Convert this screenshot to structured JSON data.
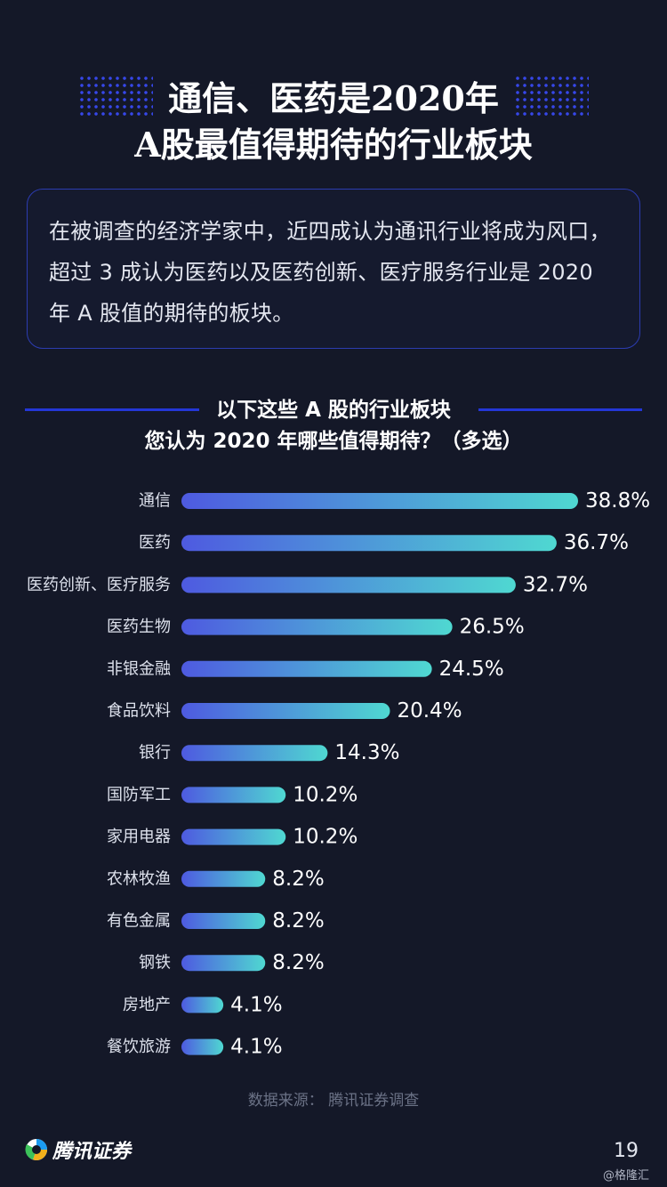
{
  "title": {
    "line1": "通信、医药是2020年",
    "line2": "A股最值得期待的行业板块"
  },
  "summary": "在被调查的经济学家中，近四成认为通讯行业将成为风口，超过 3 成认为医药以及医药创新、医疗服务行业是 2020 年 A 股值的期待的板块。",
  "question": {
    "line1": "以下这些 A 股的行业板块",
    "line2": "您认为 2020 年哪些值得期待？（多选）"
  },
  "chart_data": {
    "type": "bar",
    "orientation": "horizontal",
    "categories": [
      "通信",
      "医药",
      "医药创新、医疗服务",
      "医药生物",
      "非银金融",
      "食品饮料",
      "银行",
      "国防军工",
      "家用电器",
      "农林牧渔",
      "有色金属",
      "钢铁",
      "房地产",
      "餐饮旅游"
    ],
    "values": [
      38.8,
      36.7,
      32.7,
      26.5,
      24.5,
      20.4,
      14.3,
      10.2,
      10.2,
      8.2,
      8.2,
      8.2,
      4.1,
      4.1
    ],
    "value_labels": [
      "38.8%",
      "36.7%",
      "32.7%",
      "26.5%",
      "24.5%",
      "20.4%",
      "14.3%",
      "10.2%",
      "10.2%",
      "8.2%",
      "8.2%",
      "8.2%",
      "4.1%",
      "4.1%"
    ],
    "unit": "%",
    "xlim": [
      0,
      38.8
    ],
    "grid": false,
    "legend": "none",
    "bar_gradient": [
      "#4e5ae0",
      "#4fd8d1"
    ]
  },
  "source": "数据来源： 腾讯证券调查",
  "logo_text": "腾讯证券",
  "page_number": "19",
  "watermark": "@格隆汇",
  "colors": {
    "background": "#141828",
    "accent_blue": "#2436d6",
    "bar_start": "#4e5ae0",
    "bar_end": "#4fd8d1"
  }
}
